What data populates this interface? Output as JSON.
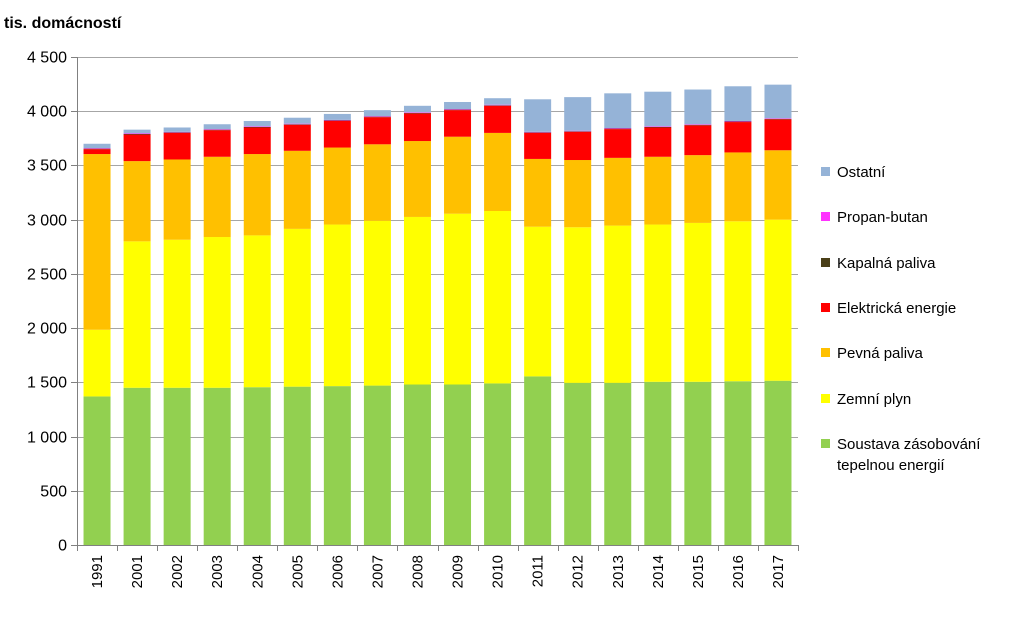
{
  "chart_data": {
    "type": "bar",
    "stacked": true,
    "title": "",
    "ylabel": "tis. domácností",
    "xlabel": "",
    "ylim": [
      0,
      4500
    ],
    "y_ticks": [
      0,
      500,
      1000,
      1500,
      2000,
      2500,
      3000,
      3500,
      4000,
      4500
    ],
    "y_tick_labels": [
      "0",
      "500",
      "1 000",
      "1 500",
      "2 000",
      "2 500",
      "3 000",
      "3 500",
      "4 000",
      "4 500"
    ],
    "grid": "horizontal",
    "legend_position": "right",
    "categories": [
      "1991",
      "2001",
      "2002",
      "2003",
      "2004",
      "2005",
      "2006",
      "2007",
      "2008",
      "2009",
      "2010",
      "2011",
      "2012",
      "2013",
      "2014",
      "2015",
      "2016",
      "2017"
    ],
    "series": [
      {
        "name": "Soustava zásobování tepelnou energií",
        "name_lines": [
          "Soustava zásobování",
          "tepelnou energií"
        ],
        "color": "#92d050",
        "values": [
          1370,
          1450,
          1450,
          1450,
          1455,
          1460,
          1465,
          1470,
          1480,
          1480,
          1490,
          1555,
          1495,
          1495,
          1505,
          1505,
          1510,
          1515
        ]
      },
      {
        "name": "Zemní plyn",
        "color": "#ffff00",
        "values": [
          615,
          1350,
          1365,
          1390,
          1400,
          1455,
          1490,
          1520,
          1545,
          1575,
          1590,
          1380,
          1435,
          1450,
          1450,
          1465,
          1475,
          1485
        ]
      },
      {
        "name": "Pevná paliva",
        "color": "#ffc000",
        "values": [
          1620,
          740,
          740,
          740,
          750,
          720,
          710,
          705,
          700,
          710,
          720,
          625,
          620,
          625,
          625,
          625,
          635,
          640
        ]
      },
      {
        "name": "Elektrická energie",
        "color": "#ff0000",
        "values": [
          45,
          245,
          245,
          245,
          245,
          240,
          245,
          250,
          255,
          245,
          250,
          240,
          260,
          265,
          270,
          275,
          280,
          285
        ]
      },
      {
        "name": "Kapalná paliva",
        "color": "#4a3f18",
        "values": [
          5,
          5,
          5,
          5,
          5,
          5,
          5,
          5,
          5,
          5,
          5,
          5,
          5,
          5,
          5,
          5,
          5,
          5
        ]
      },
      {
        "name": "Propan-butan",
        "color": "#ff33ff",
        "values": [
          5,
          5,
          5,
          5,
          5,
          5,
          5,
          5,
          5,
          5,
          5,
          5,
          5,
          5,
          5,
          5,
          5,
          5
        ]
      },
      {
        "name": "Ostatní",
        "color": "#95b3d7",
        "values": [
          40,
          35,
          40,
          45,
          50,
          55,
          55,
          55,
          60,
          65,
          60,
          300,
          310,
          320,
          320,
          320,
          320,
          310
        ]
      }
    ]
  }
}
